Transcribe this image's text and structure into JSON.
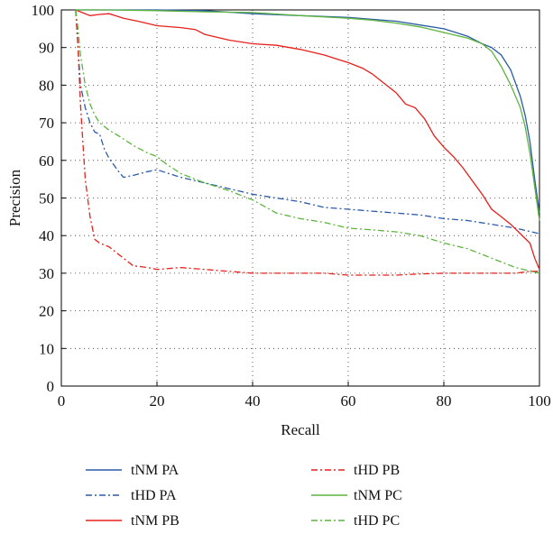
{
  "chart_data": {
    "type": "line",
    "title": "",
    "xlabel": "Recall",
    "ylabel": "Precision",
    "xlim": [
      0,
      100
    ],
    "ylim": [
      0,
      100
    ],
    "xticks": [
      0,
      20,
      40,
      60,
      80,
      100
    ],
    "yticks": [
      0,
      10,
      20,
      30,
      40,
      50,
      60,
      70,
      80,
      90,
      100
    ],
    "grid": "dotted",
    "legend_position": "bottom",
    "series": [
      {
        "name": "tNM PA",
        "color": "#2b5aa8",
        "dash": "solid",
        "x": [
          3,
          10,
          20,
          30,
          40,
          50,
          60,
          65,
          70,
          75,
          80,
          85,
          88,
          90,
          92,
          94,
          96,
          97,
          98,
          99,
          100
        ],
        "y": [
          100,
          100,
          100,
          99.8,
          99,
          98.5,
          98,
          97.5,
          97,
          96,
          95,
          93,
          91,
          90,
          88,
          84,
          77,
          72,
          65,
          55,
          46
        ]
      },
      {
        "name": "tHD PA",
        "color": "#2b5aa8",
        "dash": "dashdot",
        "x": [
          3,
          3.5,
          4,
          5,
          6,
          7,
          8,
          9,
          10,
          12,
          13,
          15,
          18,
          20,
          25,
          30,
          35,
          40,
          45,
          50,
          55,
          60,
          65,
          70,
          75,
          80,
          85,
          90,
          95,
          100
        ],
        "y": [
          100,
          90,
          80,
          74,
          70,
          67.5,
          67,
          63,
          60.5,
          57,
          55.5,
          56,
          57,
          57.5,
          55.5,
          54,
          52.5,
          51,
          50,
          49,
          47.5,
          47,
          46.5,
          46,
          45.5,
          44.5,
          44,
          43,
          42,
          40.5
        ]
      },
      {
        "name": "tNM PB",
        "color": "#e8201b",
        "dash": "solid",
        "x": [
          3,
          4,
          6,
          8,
          10,
          13,
          16,
          20,
          25,
          28,
          30,
          35,
          40,
          45,
          50,
          55,
          60,
          63,
          65,
          67,
          70,
          72,
          74,
          76,
          78,
          80,
          82,
          84,
          86,
          88,
          90,
          92,
          94,
          96,
          98,
          99,
          100
        ],
        "y": [
          100,
          99.5,
          98.5,
          98.8,
          99,
          97.8,
          97,
          95.8,
          95.3,
          94.8,
          93.5,
          92,
          91,
          90.6,
          89.5,
          88,
          86,
          84.5,
          83,
          81,
          78,
          75,
          74,
          71,
          66.5,
          63.5,
          61,
          58,
          54.5,
          51,
          47,
          45,
          43,
          40.5,
          38,
          34,
          31
        ]
      },
      {
        "name": "tHD PB",
        "color": "#e8201b",
        "dash": "dashdot",
        "x": [
          3,
          3.5,
          4,
          4.5,
          5,
          6,
          7,
          8,
          9,
          10,
          12,
          14,
          15,
          18,
          20,
          25,
          30,
          35,
          40,
          45,
          50,
          55,
          60,
          65,
          70,
          75,
          80,
          85,
          90,
          95,
          98,
          100
        ],
        "y": [
          100,
          90,
          75,
          65,
          55,
          45,
          39,
          38,
          37.5,
          37,
          35,
          33,
          32,
          31.5,
          31,
          31.5,
          31,
          30.5,
          30,
          30,
          30,
          30,
          29.5,
          29.5,
          29.5,
          29.8,
          30,
          30,
          30,
          30,
          30.5,
          30.5
        ]
      },
      {
        "name": "tNM PC",
        "color": "#5cb43d",
        "dash": "solid",
        "x": [
          3,
          10,
          20,
          30,
          40,
          50,
          60,
          65,
          70,
          75,
          80,
          85,
          88,
          90,
          92,
          94,
          96,
          97,
          98,
          99,
          100
        ],
        "y": [
          100,
          100,
          99.8,
          99.5,
          99.3,
          98.5,
          97.8,
          97.3,
          96.5,
          95.5,
          94,
          92.5,
          91,
          89,
          85,
          80,
          74,
          69,
          62,
          53,
          44
        ]
      },
      {
        "name": "tHD PC",
        "color": "#5cb43d",
        "dash": "dashdot",
        "x": [
          3,
          3.5,
          4,
          5,
          6,
          7,
          8,
          10,
          12,
          15,
          18,
          20,
          22,
          25,
          30,
          35,
          40,
          45,
          50,
          55,
          60,
          65,
          70,
          75,
          80,
          85,
          90,
          95,
          100
        ],
        "y": [
          100,
          95,
          88,
          80,
          75,
          72,
          70,
          68,
          66.5,
          64,
          62,
          61,
          59,
          56.5,
          54,
          52,
          49.5,
          46,
          44.5,
          43.5,
          42,
          41.5,
          41,
          40,
          38,
          36.5,
          34,
          31.5,
          30
        ]
      }
    ]
  }
}
